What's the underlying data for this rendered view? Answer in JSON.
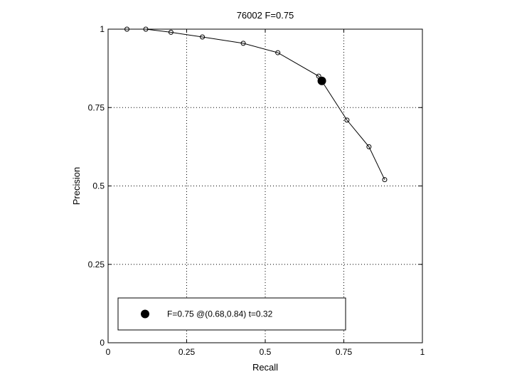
{
  "chart_data": {
    "type": "line",
    "title": "76002 F=0.75",
    "xlabel": "Recall",
    "ylabel": "Precision",
    "xlim": [
      0,
      1
    ],
    "ylim": [
      0,
      1
    ],
    "grid": true,
    "grid_style": "dotted",
    "xticks": [
      0,
      0.25,
      0.5,
      0.75,
      1
    ],
    "xtick_labels": [
      "0",
      "0.25",
      "0.5",
      "0.75",
      "1"
    ],
    "yticks": [
      0,
      0.25,
      0.5,
      0.75,
      1
    ],
    "ytick_labels": [
      "0",
      "0.25",
      "0.5",
      "0.75",
      "1"
    ],
    "series": [
      {
        "x": [
          0.06,
          0.12,
          0.2,
          0.3,
          0.43,
          0.54,
          0.67,
          0.76,
          0.83,
          0.88
        ],
        "y": [
          1.0,
          1.0,
          0.99,
          0.975,
          0.955,
          0.925,
          0.85,
          0.71,
          0.625,
          0.52
        ],
        "marker": "open-circle",
        "color": "#000000"
      }
    ],
    "highlight_point": {
      "x": 0.68,
      "y": 0.835,
      "marker": "filled-circle",
      "color": "#000000"
    },
    "legend": {
      "position": "bottom-left",
      "entries": [
        {
          "label": "F=0.75 @(0.68,0.84) t=0.32",
          "marker": "filled-circle"
        }
      ]
    }
  }
}
